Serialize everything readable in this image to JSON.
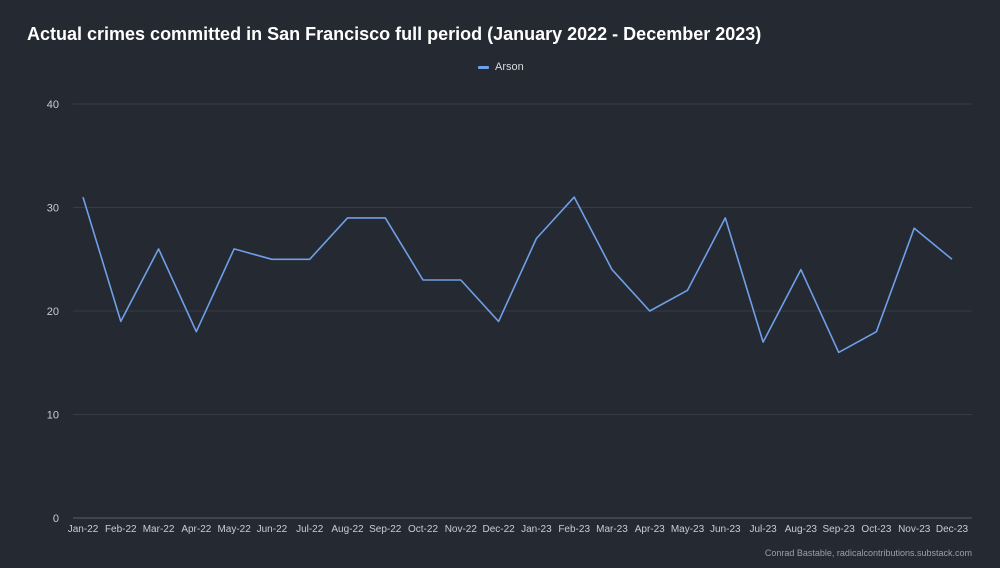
{
  "chart_data": {
    "type": "line",
    "title": "Actual crimes committed in San Francisco full period (January 2022 - December 2023)",
    "categories": [
      "Jan-22",
      "Feb-22",
      "Mar-22",
      "Apr-22",
      "May-22",
      "Jun-22",
      "Jul-22",
      "Aug-22",
      "Sep-22",
      "Oct-22",
      "Nov-22",
      "Dec-22",
      "Jan-23",
      "Feb-23",
      "Mar-23",
      "Apr-23",
      "May-23",
      "Jun-23",
      "Jul-23",
      "Aug-23",
      "Sep-23",
      "Oct-23",
      "Nov-23",
      "Dec-23"
    ],
    "series": [
      {
        "name": "Arson",
        "color": "#6f9fe8",
        "values": [
          31,
          19,
          26,
          18,
          26,
          25,
          25,
          29,
          29,
          23,
          23,
          19,
          27,
          31,
          24,
          20,
          22,
          29,
          17,
          24,
          16,
          18,
          28,
          25
        ]
      }
    ],
    "ylim": [
      0,
      40
    ],
    "yticks": [
      0,
      10,
      20,
      30,
      40
    ],
    "grid": true,
    "legend": "top-center"
  },
  "credit": "Conrad Bastable, radicalcontributions.substack.com"
}
